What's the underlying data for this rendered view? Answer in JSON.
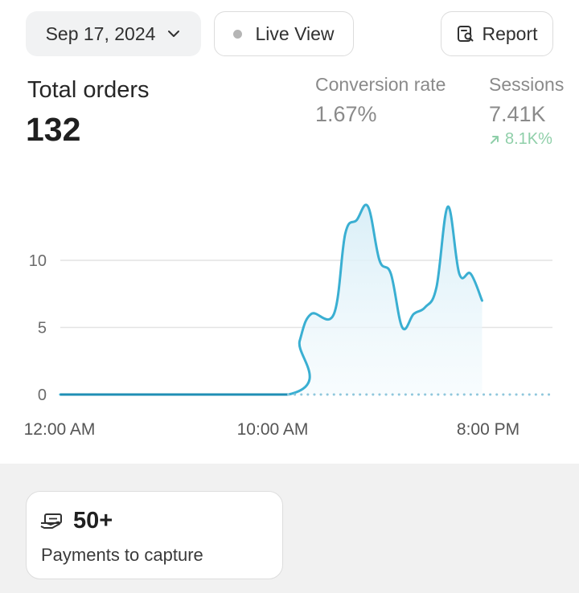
{
  "toolbar": {
    "date_label": "Sep 17, 2024",
    "live_label": "Live View",
    "report_label": "Report"
  },
  "metric": {
    "title": "Total orders",
    "value": "132"
  },
  "conversion": {
    "label": "Conversion rate",
    "value": "1.67%"
  },
  "sessions": {
    "label": "Sessions",
    "value": "7.41K",
    "trend": "8.1K%"
  },
  "colors": {
    "line": "#3aafd2",
    "fill": "#e4f3f9",
    "trend_up": "#8fcfa9"
  },
  "chart_data": {
    "type": "area",
    "title": "",
    "xlabel": "",
    "ylabel": "",
    "ylim": [
      0,
      15
    ],
    "yticks": [
      "0",
      "5",
      "10"
    ],
    "xticks": [
      "12:00 AM",
      "10:00 AM",
      "8:00 PM"
    ],
    "grid": true,
    "series": [
      {
        "values": [
          [
            0,
            0
          ],
          [
            10,
            0
          ],
          [
            10.5,
            4
          ],
          [
            11,
            6
          ],
          [
            12,
            6
          ],
          [
            12.5,
            12
          ],
          [
            13,
            13
          ],
          [
            13.5,
            14
          ],
          [
            14,
            10
          ],
          [
            14.5,
            9
          ],
          [
            15,
            5
          ],
          [
            15.5,
            6
          ],
          [
            16,
            6.5
          ],
          [
            16.5,
            8
          ],
          [
            17,
            14
          ],
          [
            17.5,
            9
          ],
          [
            18,
            9
          ],
          [
            18.5,
            7
          ]
        ]
      }
    ],
    "comparison_dotted": true
  },
  "payments": {
    "count": "50+",
    "label": "Payments to capture"
  }
}
